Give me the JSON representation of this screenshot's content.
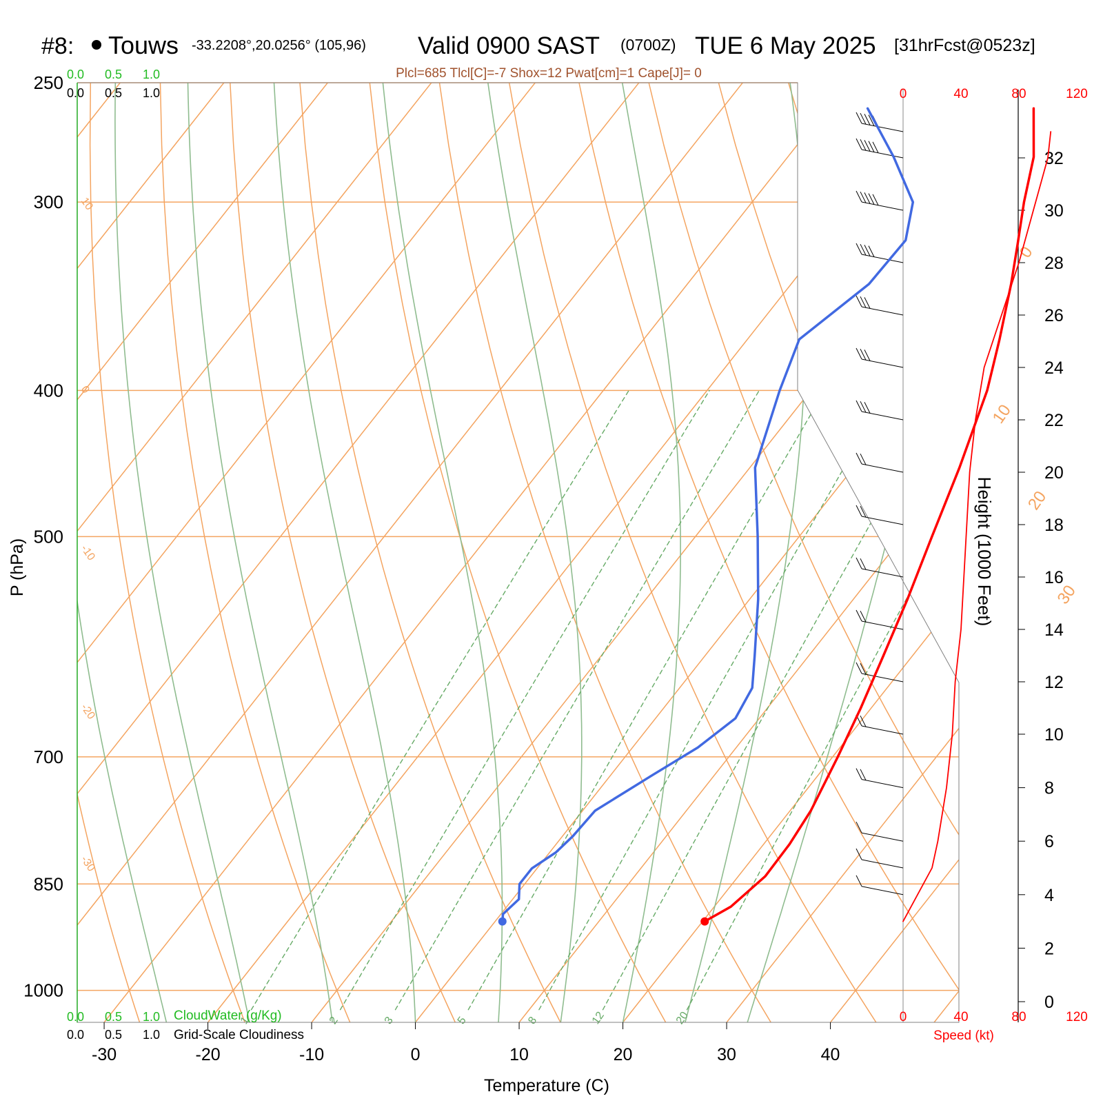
{
  "header": {
    "station_number": "#8:",
    "station_name": "Touws",
    "coords": "-33.2208°,20.0256° (105,96)",
    "valid_label": "Valid 0900 SAST",
    "zulu": "(0700Z)",
    "date": "TUE 6 May 2025",
    "forecast": "[31hrFcst@0523z]",
    "indices": "Plcl=685 Tlcl[C]=-7 Shox=12 Pwat[cm]=1 Cape[J]= 0"
  },
  "legend": {
    "scale_ticks": [
      "0.0",
      "0.5",
      "1.0"
    ],
    "cloudwater_label": "CloudWater (g/Kg)",
    "cloudiness_label": "Grid-Scale Cloudiness"
  },
  "colors": {
    "temperature": "#ff0000",
    "dewpoint": "#4169e1",
    "isotherm": "#f4a460",
    "dry_adiabat": "#f4a460",
    "moist_adiabat": "#8fbc8f",
    "mixing_ratio": "#66aa66",
    "cloud_legend": "#22bb22",
    "speed": "#ff0000",
    "indices_text": "#a0522d",
    "barb": "#000000"
  },
  "chart_data": {
    "type": "line",
    "title": "Valid 0900 SAST (0700Z) TUE 6 May 2025",
    "xlabel": "Temperature (C)",
    "ylabel": "P (hPa)",
    "y2label": "Height (1000 Feet)",
    "xlim": [
      -30,
      50
    ],
    "ylim": [
      250,
      1050
    ],
    "x_ticks": [
      -30,
      -20,
      -10,
      0,
      10,
      20,
      30,
      40
    ],
    "pressure_ticks": [
      250,
      300,
      400,
      500,
      700,
      850,
      1000
    ],
    "height_ticks": [
      0,
      2,
      4,
      6,
      8,
      10,
      12,
      14,
      16,
      18,
      20,
      22,
      24,
      26,
      28,
      30,
      32
    ],
    "isotherm_labels": [
      {
        "t": 10,
        "p": 300
      },
      {
        "t": 0,
        "p": 400
      },
      {
        "t": -10,
        "p": 510
      },
      {
        "t": -20,
        "p": 650
      },
      {
        "t": -30,
        "p": 820
      },
      {
        "t": 0,
        "p": 330
      },
      {
        "t": 10,
        "p": 425
      },
      {
        "t": 20,
        "p": 485
      },
      {
        "t": 30,
        "p": 560
      }
    ],
    "mixing_ratio_labels": [
      "1",
      "2",
      "3",
      "5",
      "8",
      "12",
      "20"
    ],
    "speed_ticks": [
      "0",
      "40",
      "80",
      "120"
    ],
    "speed_label": "Speed (kt)",
    "series": [
      {
        "name": "Temperature",
        "values": [
          {
            "p": 900,
            "t": 20.2
          },
          {
            "p": 880,
            "t": 21.6
          },
          {
            "p": 840,
            "t": 22.6
          },
          {
            "p": 800,
            "t": 22.5
          },
          {
            "p": 760,
            "t": 22.0
          },
          {
            "p": 700,
            "t": 20.5
          },
          {
            "p": 650,
            "t": 19.0
          },
          {
            "p": 600,
            "t": 17.2
          },
          {
            "p": 550,
            "t": 15.2
          },
          {
            "p": 500,
            "t": 12.8
          },
          {
            "p": 450,
            "t": 10.2
          },
          {
            "p": 400,
            "t": 7.0
          },
          {
            "p": 370,
            "t": 4.3
          },
          {
            "p": 340,
            "t": 1.2
          },
          {
            "p": 320,
            "t": -1.2
          },
          {
            "p": 300,
            "t": -3.8
          },
          {
            "p": 280,
            "t": -6.3
          },
          {
            "p": 260,
            "t": -10.0
          }
        ]
      },
      {
        "name": "Dewpoint",
        "values": [
          {
            "p": 900,
            "t": 0.7
          },
          {
            "p": 890,
            "t": 0.2
          },
          {
            "p": 870,
            "t": 0.6
          },
          {
            "p": 850,
            "t": -0.5
          },
          {
            "p": 830,
            "t": -0.5
          },
          {
            "p": 810,
            "t": 0.6
          },
          {
            "p": 790,
            "t": 1.0
          },
          {
            "p": 760,
            "t": 1.2
          },
          {
            "p": 720,
            "t": 4.0
          },
          {
            "p": 690,
            "t": 6.3
          },
          {
            "p": 660,
            "t": 7.7
          },
          {
            "p": 630,
            "t": 7.0
          },
          {
            "p": 600,
            "t": 4.8
          },
          {
            "p": 550,
            "t": 0.8
          },
          {
            "p": 500,
            "t": -4.0
          },
          {
            "p": 450,
            "t": -9.5
          },
          {
            "p": 400,
            "t": -13.0
          },
          {
            "p": 370,
            "t": -15.0
          },
          {
            "p": 340,
            "t": -12.5
          },
          {
            "p": 318,
            "t": -12.3
          },
          {
            "p": 300,
            "t": -14.5
          },
          {
            "p": 280,
            "t": -19.8
          },
          {
            "p": 260,
            "t": -26.0
          }
        ]
      }
    ],
    "wind_profile": [
      {
        "height_kft": 3,
        "speed_kt": 0
      },
      {
        "height_kft": 4,
        "speed_kt": 5
      },
      {
        "height_kft": 5,
        "speed_kt": 10
      },
      {
        "height_kft": 6,
        "speed_kt": 12
      },
      {
        "height_kft": 8,
        "speed_kt": 15
      },
      {
        "height_kft": 10,
        "speed_kt": 17
      },
      {
        "height_kft": 12,
        "speed_kt": 18
      },
      {
        "height_kft": 14,
        "speed_kt": 20
      },
      {
        "height_kft": 16,
        "speed_kt": 21
      },
      {
        "height_kft": 18,
        "speed_kt": 22
      },
      {
        "height_kft": 20,
        "speed_kt": 23
      },
      {
        "height_kft": 22,
        "speed_kt": 25
      },
      {
        "height_kft": 24,
        "speed_kt": 28
      },
      {
        "height_kft": 26,
        "speed_kt": 34
      },
      {
        "height_kft": 28,
        "speed_kt": 40
      },
      {
        "height_kft": 30,
        "speed_kt": 45
      },
      {
        "height_kft": 32,
        "speed_kt": 50
      },
      {
        "height_kft": 33,
        "speed_kt": 51
      }
    ]
  }
}
